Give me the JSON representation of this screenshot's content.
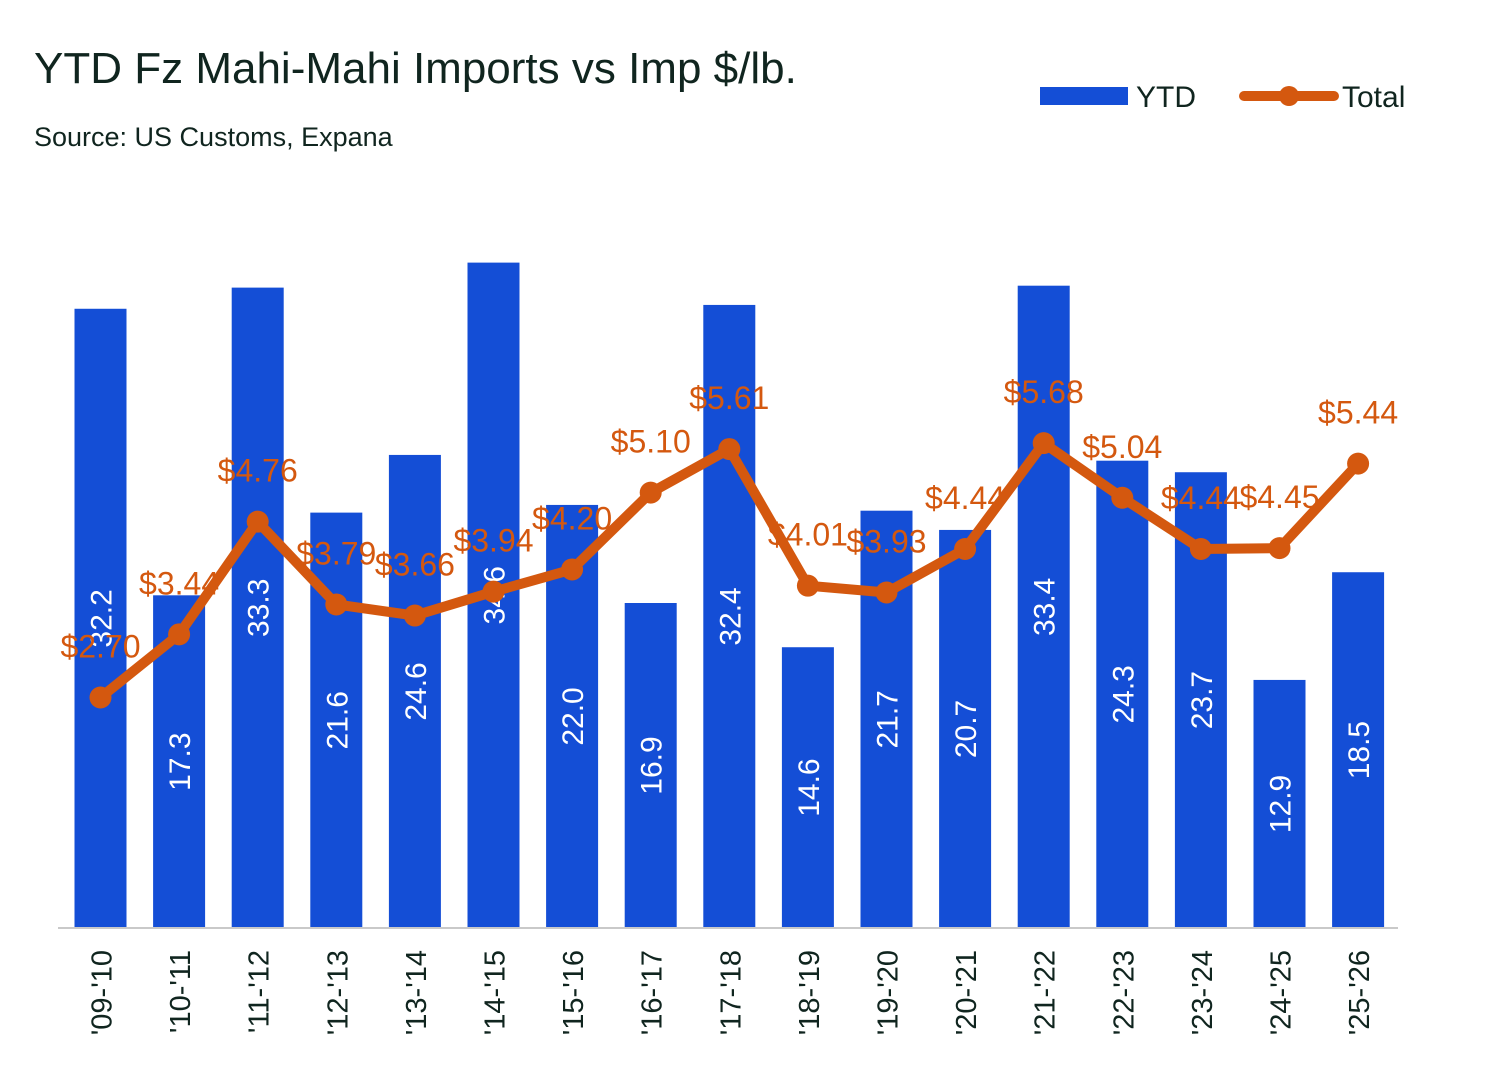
{
  "title": "YTD Fz Mahi-Mahi Imports vs Imp $/lb.",
  "subtitle": "Source: US Customs, Expana",
  "chart_data": {
    "type": "bar",
    "categories": [
      "'09-'10",
      "'10-'11",
      "'11-'12",
      "'12-'13",
      "'13-'14",
      "'14-'15",
      "'15-'16",
      "'16-'17",
      "'17-'18",
      "'18-'19",
      "'19-'20",
      "'20-'21",
      "'21-'22",
      "'22-'23",
      "'23-'24",
      "'24-'25",
      "'25-'26"
    ],
    "series": [
      {
        "name": "YTD",
        "type": "bar",
        "color": "#144ed6",
        "values": [
          32.2,
          17.3,
          33.3,
          21.6,
          24.6,
          34.6,
          22.0,
          16.9,
          32.4,
          14.6,
          21.7,
          20.7,
          33.4,
          24.3,
          23.7,
          12.9,
          18.5
        ],
        "labels": [
          "32.2",
          "17.3",
          "33.3",
          "21.6",
          "24.6",
          "34.6",
          "22.0",
          "16.9",
          "32.4",
          "14.6",
          "21.7",
          "20.7",
          "33.4",
          "24.3",
          "23.7",
          "12.9",
          "18.5"
        ]
      },
      {
        "name": "Total",
        "type": "line",
        "color": "#d4580f",
        "values": [
          2.7,
          3.44,
          4.76,
          3.79,
          3.66,
          3.94,
          4.2,
          5.1,
          5.61,
          4.01,
          3.93,
          4.44,
          5.68,
          5.04,
          4.44,
          4.45,
          5.44
        ],
        "labels": [
          "$2.70",
          "$3.44",
          "$4.76",
          "$3.79",
          "$3.66",
          "$3.94",
          "$4.20",
          "$5.10",
          "$5.61",
          "$4.01",
          "$3.93",
          "$4.44",
          "$5.68",
          "$5.04",
          "$4.44",
          "$4.45",
          "$5.44"
        ]
      }
    ],
    "ylim_bars": [
      0,
      36.4
    ],
    "ylim_line": [
      0,
      8.2
    ],
    "legend_position": "top-right",
    "grid": false
  }
}
